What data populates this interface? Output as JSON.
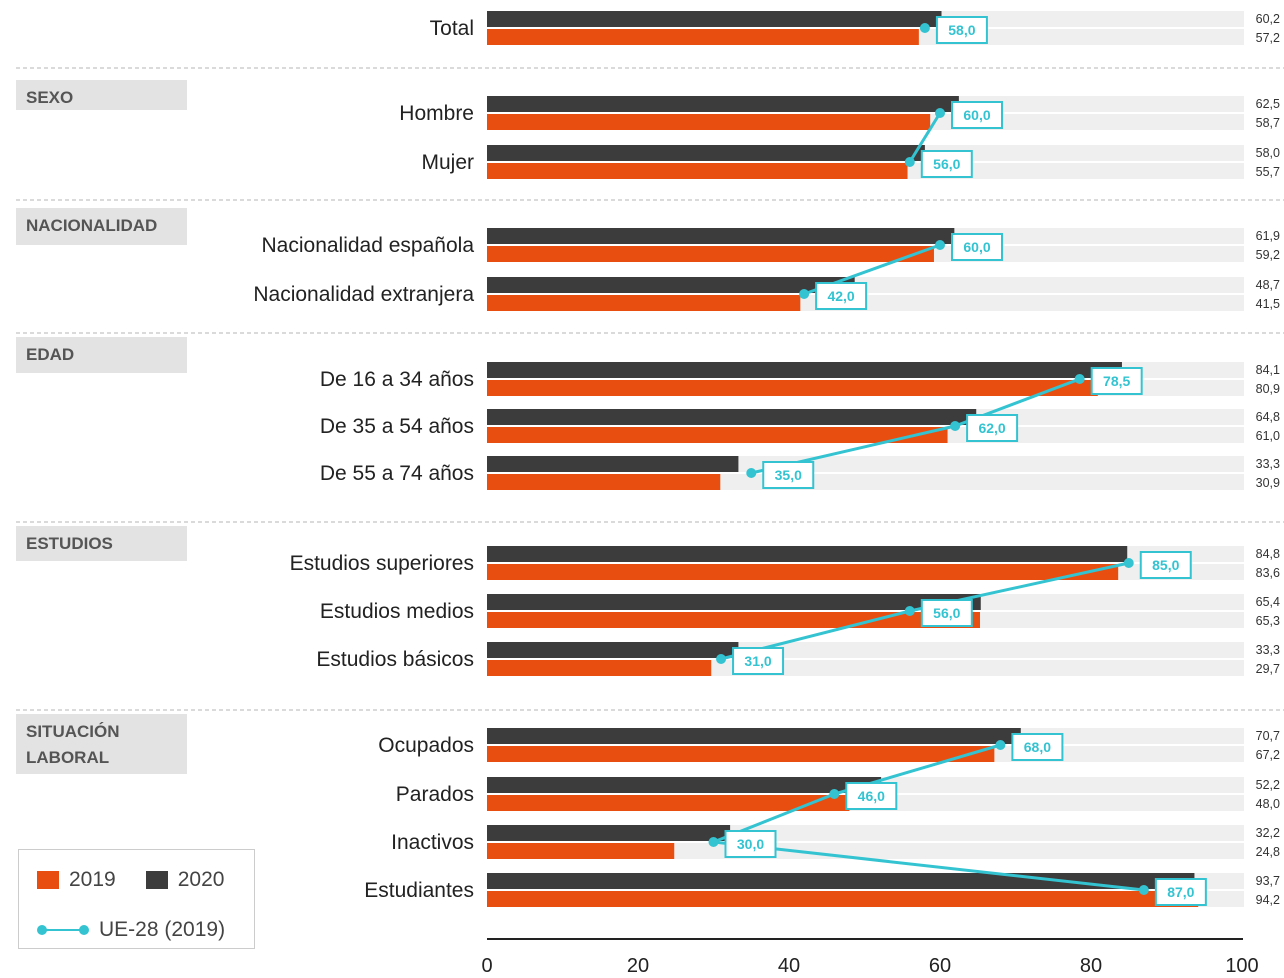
{
  "chart_data": {
    "type": "bar",
    "orientation": "horizontal",
    "xlim": [
      0,
      100
    ],
    "x_ticks": [
      "0",
      "20",
      "40",
      "60",
      "80",
      "100"
    ],
    "colors": {
      "2019": "#e84e0f",
      "2020": "#3c3c3c",
      "ue": "#33c3d1",
      "track": "#efefef",
      "group_bg": "#e3e3e3"
    },
    "legend": {
      "s2019": "2019",
      "s2020": "2020",
      "ue": "UE-28 (2019)"
    },
    "rows": [
      {
        "label": "Total",
        "v2020": 60.2,
        "v2019": 57.2,
        "ue": 58.0,
        "v2020_text": "60,2",
        "v2019_text": "57,2",
        "ue_text": "58,0"
      },
      {
        "label": "Hombre",
        "v2020": 62.5,
        "v2019": 58.7,
        "ue": 60.0,
        "v2020_text": "62,5",
        "v2019_text": "58,7",
        "ue_text": "60,0"
      },
      {
        "label": "Mujer",
        "v2020": 58.0,
        "v2019": 55.7,
        "ue": 56.0,
        "v2020_text": "58,0",
        "v2019_text": "55,7",
        "ue_text": "56,0"
      },
      {
        "label": "Nacionalidad española",
        "v2020": 61.9,
        "v2019": 59.2,
        "ue": 60.0,
        "v2020_text": "61,9",
        "v2019_text": "59,2",
        "ue_text": "60,0"
      },
      {
        "label": "Nacionalidad extranjera",
        "v2020": 48.7,
        "v2019": 41.5,
        "ue": 42.0,
        "v2020_text": "48,7",
        "v2019_text": "41,5",
        "ue_text": "42,0"
      },
      {
        "label": "De 16 a 34 años",
        "v2020": 84.1,
        "v2019": 80.9,
        "ue": 78.5,
        "v2020_text": "84,1",
        "v2019_text": "80,9",
        "ue_text": "78,5"
      },
      {
        "label": "De 35 a 54 años",
        "v2020": 64.8,
        "v2019": 61.0,
        "ue": 62.0,
        "v2020_text": "64,8",
        "v2019_text": "61,0",
        "ue_text": "62,0"
      },
      {
        "label": "De 55 a 74 años",
        "v2020": 33.3,
        "v2019": 30.9,
        "ue": 35.0,
        "v2020_text": "33,3",
        "v2019_text": "30,9",
        "ue_text": "35,0"
      },
      {
        "label": "Estudios superiores",
        "v2020": 84.8,
        "v2019": 83.6,
        "ue": 85.0,
        "v2020_text": "84,8",
        "v2019_text": "83,6",
        "ue_text": "85,0"
      },
      {
        "label": "Estudios medios",
        "v2020": 65.4,
        "v2019": 65.3,
        "ue": 56.0,
        "v2020_text": "65,4",
        "v2019_text": "65,3",
        "ue_text": "56,0"
      },
      {
        "label": "Estudios básicos",
        "v2020": 33.3,
        "v2019": 29.7,
        "ue": 31.0,
        "v2020_text": "33,3",
        "v2019_text": "29,7",
        "ue_text": "31,0"
      },
      {
        "label": "Ocupados",
        "v2020": 70.7,
        "v2019": 67.2,
        "ue": 68.0,
        "v2020_text": "70,7",
        "v2019_text": "67,2",
        "ue_text": "68,0"
      },
      {
        "label": "Parados",
        "v2020": 52.2,
        "v2019": 48.0,
        "ue": 46.0,
        "v2020_text": "52,2",
        "v2019_text": "48,0",
        "ue_text": "46,0"
      },
      {
        "label": "Inactivos",
        "v2020": 32.2,
        "v2019": 24.8,
        "ue": 30.0,
        "v2020_text": "32,2",
        "v2019_text": "24,8",
        "ue_text": "30,0"
      },
      {
        "label": "Estudiantes",
        "v2020": 93.7,
        "v2019": 94.2,
        "ue": 87.0,
        "v2020_text": "93,7",
        "v2019_text": "94,2",
        "ue_text": "87,0"
      }
    ],
    "groups": [
      {
        "lines": [
          "SEXO"
        ]
      },
      {
        "lines": [
          "NACIONALIDAD"
        ]
      },
      {
        "lines": [
          "EDAD"
        ]
      },
      {
        "lines": [
          "ESTUDIOS"
        ]
      },
      {
        "lines": [
          "SITUACIÓN",
          "LABORAL"
        ]
      }
    ],
    "ue_line_segments": [
      [
        1,
        2
      ],
      [
        3,
        4
      ],
      [
        5,
        6,
        7
      ],
      [
        8,
        9,
        10
      ],
      [
        11,
        12,
        13,
        14
      ]
    ]
  }
}
